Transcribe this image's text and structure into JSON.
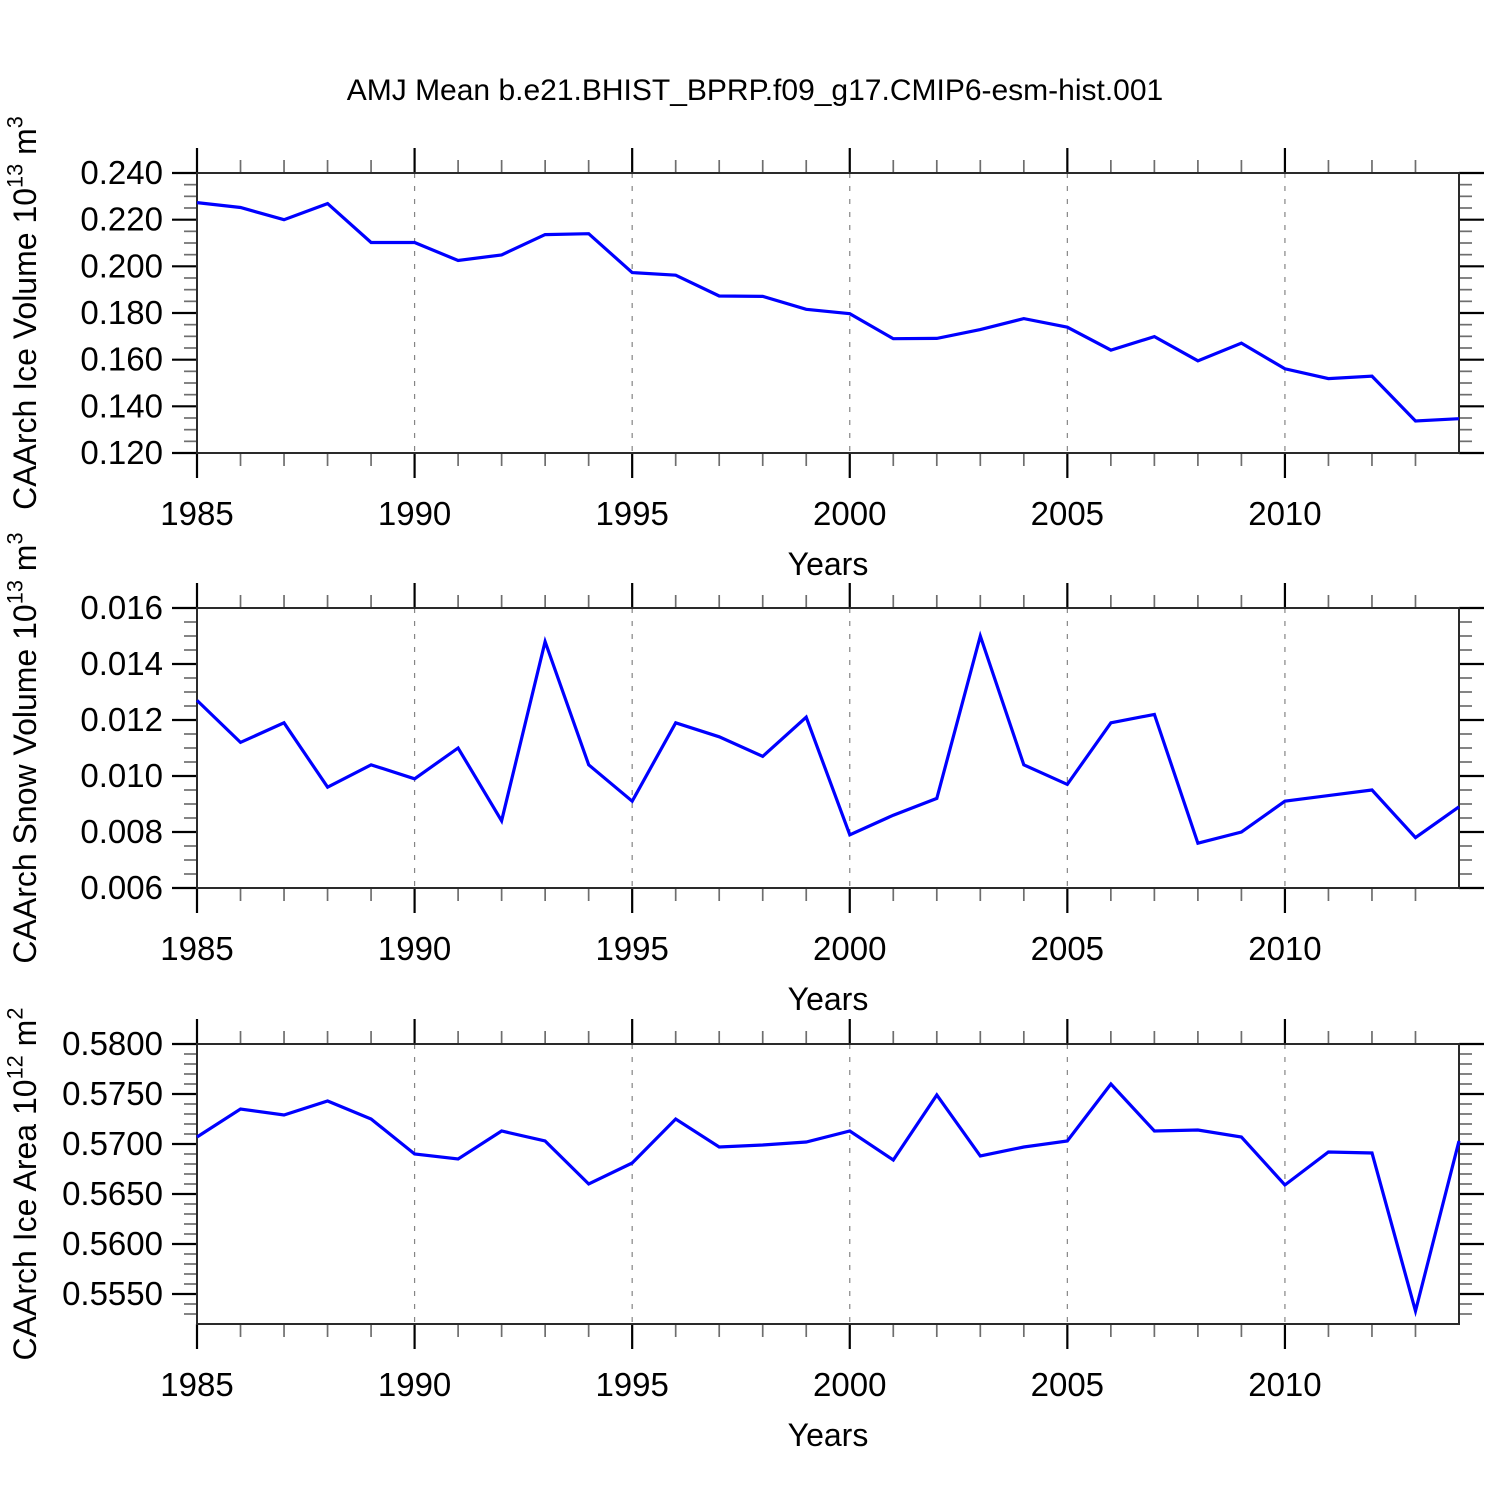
{
  "title": "AMJ Mean b.e21.BHIST_BPRP.f09_g17.CMIP6-esm-hist.001",
  "line_color": "#0000ff",
  "grid_color": "#858585",
  "frame_color": "#2a2a2a",
  "minor_tick_color": "#6e6e6e",
  "major_tick_color": "#000000",
  "chart_data": [
    {
      "type": "line",
      "ylabel": "CAArch Ice Volume 10^13 m^3",
      "xlabel": "Years",
      "x": [
        1985,
        1986,
        1987,
        1988,
        1989,
        1990,
        1991,
        1992,
        1993,
        1994,
        1995,
        1996,
        1997,
        1998,
        1999,
        2000,
        2001,
        2002,
        2003,
        2004,
        2005,
        2006,
        2007,
        2008,
        2009,
        2010,
        2011,
        2012,
        2013,
        2014
      ],
      "values": [
        0.2273,
        0.2252,
        0.22,
        0.2269,
        0.2102,
        0.2102,
        0.2025,
        0.2049,
        0.2136,
        0.214,
        0.1973,
        0.1962,
        0.1873,
        0.1871,
        0.1816,
        0.1797,
        0.169,
        0.1691,
        0.1729,
        0.1776,
        0.1739,
        0.1641,
        0.1699,
        0.1595,
        0.1671,
        0.1561,
        0.1519,
        0.1529,
        0.1337,
        0.1347
      ],
      "xlim": [
        1985,
        2014
      ],
      "ylim": [
        0.12,
        0.24
      ],
      "yticks": [
        0.12,
        0.14,
        0.16,
        0.18,
        0.2,
        0.22,
        0.24
      ],
      "ytick_labels": [
        "0.120",
        "0.140",
        "0.160",
        "0.180",
        "0.200",
        "0.220",
        "0.240"
      ],
      "y_minor_step": 0.005,
      "xticks": [
        1985,
        1990,
        1995,
        2000,
        2005,
        2010
      ],
      "xtick_labels": [
        "1985",
        "1990",
        "1995",
        "2000",
        "2005",
        "2010"
      ],
      "x_minor_step": 1,
      "gridlines_x": [
        1990,
        1995,
        2000,
        2005,
        2010
      ],
      "grid": "vertical-dashed",
      "legend": "none"
    },
    {
      "type": "line",
      "ylabel": "CAArch Snow Volume 10^13 m^3",
      "xlabel": "Years",
      "x": [
        1985,
        1986,
        1987,
        1988,
        1989,
        1990,
        1991,
        1992,
        1993,
        1994,
        1995,
        1996,
        1997,
        1998,
        1999,
        2000,
        2001,
        2002,
        2003,
        2004,
        2005,
        2006,
        2007,
        2008,
        2009,
        2010,
        2011,
        2012,
        2013,
        2014
      ],
      "values": [
        0.0127,
        0.0112,
        0.0119,
        0.0096,
        0.0104,
        0.0099,
        0.011,
        0.0084,
        0.0148,
        0.0104,
        0.0091,
        0.0119,
        0.0114,
        0.0107,
        0.0121,
        0.0079,
        0.0086,
        0.0092,
        0.015,
        0.0104,
        0.0097,
        0.0119,
        0.0122,
        0.0076,
        0.008,
        0.0091,
        0.0093,
        0.0095,
        0.0078,
        0.0089
      ],
      "xlim": [
        1985,
        2014
      ],
      "ylim": [
        0.006,
        0.016
      ],
      "yticks": [
        0.006,
        0.008,
        0.01,
        0.012,
        0.014,
        0.016
      ],
      "ytick_labels": [
        "0.006",
        "0.008",
        "0.010",
        "0.012",
        "0.014",
        "0.016"
      ],
      "y_minor_step": 0.0005,
      "xticks": [
        1985,
        1990,
        1995,
        2000,
        2005,
        2010
      ],
      "xtick_labels": [
        "1985",
        "1990",
        "1995",
        "2000",
        "2005",
        "2010"
      ],
      "x_minor_step": 1,
      "gridlines_x": [
        1990,
        1995,
        2000,
        2005,
        2010
      ],
      "grid": "vertical-dashed",
      "legend": "none"
    },
    {
      "type": "line",
      "ylabel": "CAArch Ice Area 10^12 m^2",
      "xlabel": "Years",
      "x": [
        1985,
        1986,
        1987,
        1988,
        1989,
        1990,
        1991,
        1992,
        1993,
        1994,
        1995,
        1996,
        1997,
        1998,
        1999,
        2000,
        2001,
        2002,
        2003,
        2004,
        2005,
        2006,
        2007,
        2008,
        2009,
        2010,
        2011,
        2012,
        2013,
        2014
      ],
      "values": [
        0.5707,
        0.5735,
        0.5729,
        0.5743,
        0.5725,
        0.569,
        0.5685,
        0.5713,
        0.5703,
        0.566,
        0.5681,
        0.5725,
        0.5697,
        0.5699,
        0.5702,
        0.5713,
        0.5684,
        0.5749,
        0.5688,
        0.5697,
        0.5703,
        0.576,
        0.5713,
        0.5714,
        0.5707,
        0.5659,
        0.5692,
        0.5691,
        0.5533,
        0.5703
      ],
      "xlim": [
        1985,
        2014
      ],
      "ylim": [
        0.552,
        0.58
      ],
      "yticks": [
        0.555,
        0.56,
        0.565,
        0.57,
        0.575,
        0.58
      ],
      "ytick_labels": [
        "0.5550",
        "0.5600",
        "0.5650",
        "0.5700",
        "0.5750",
        "0.5800"
      ],
      "y_minor_step": 0.001,
      "xticks": [
        1985,
        1990,
        1995,
        2000,
        2005,
        2010
      ],
      "xtick_labels": [
        "1985",
        "1990",
        "1995",
        "2000",
        "2005",
        "2010"
      ],
      "x_minor_step": 1,
      "gridlines_x": [
        1990,
        1995,
        2000,
        2005,
        2010
      ],
      "grid": "vertical-dashed",
      "legend": "none"
    }
  ]
}
